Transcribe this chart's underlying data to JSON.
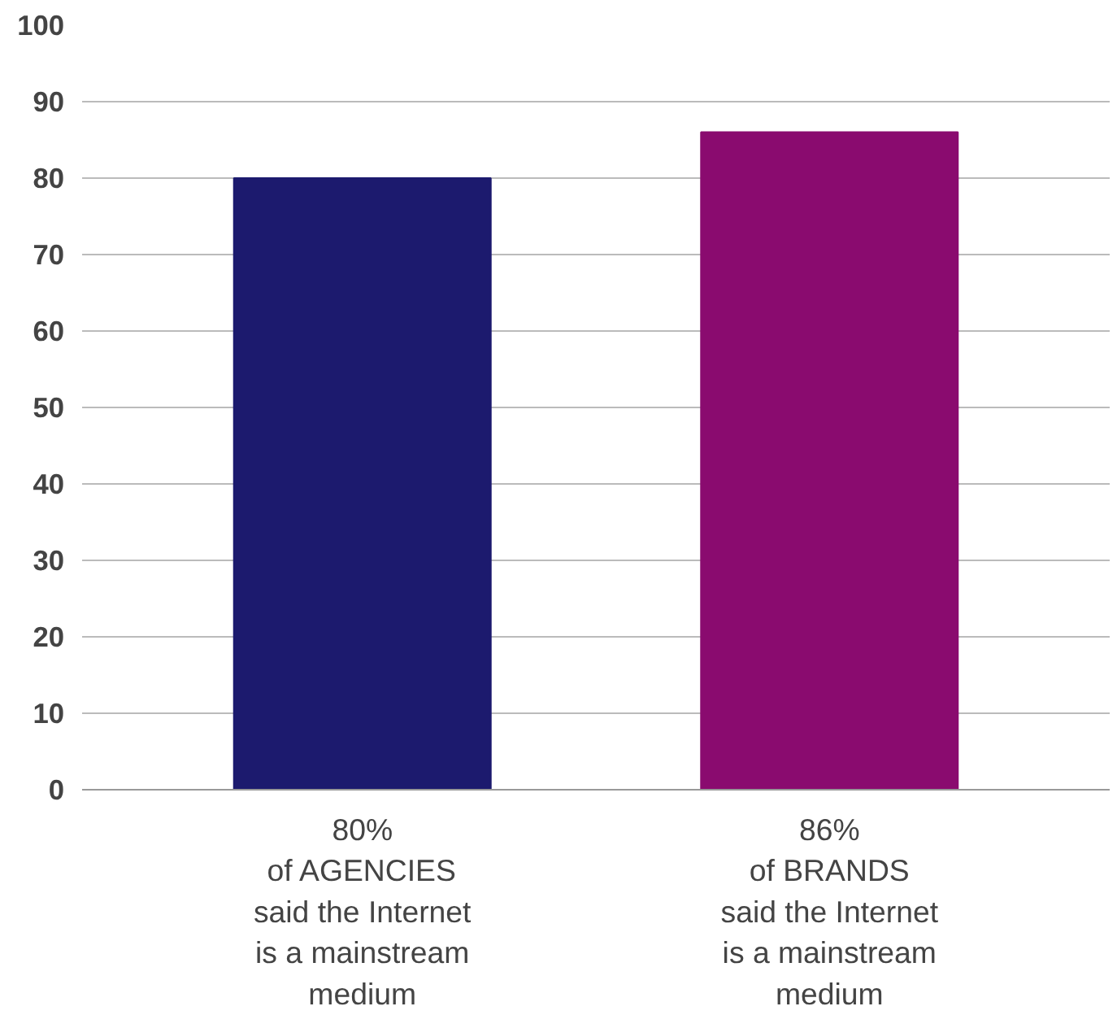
{
  "chart_data": {
    "type": "bar",
    "categories": [
      "of AGENCIES\nsaid the Internet\nis a mainstream\nmedium",
      "of BRANDS\nsaid the Internet\nis a mainstream\nmedium"
    ],
    "values": [
      80,
      86
    ],
    "colors": [
      "#1c1a6e",
      "#8a0b6f"
    ],
    "value_labels": [
      "80%",
      "86%"
    ],
    "ylim": [
      0,
      100
    ],
    "yticks": [
      0,
      10,
      20,
      30,
      40,
      50,
      60,
      70,
      80,
      90,
      100
    ],
    "grid": "y"
  }
}
